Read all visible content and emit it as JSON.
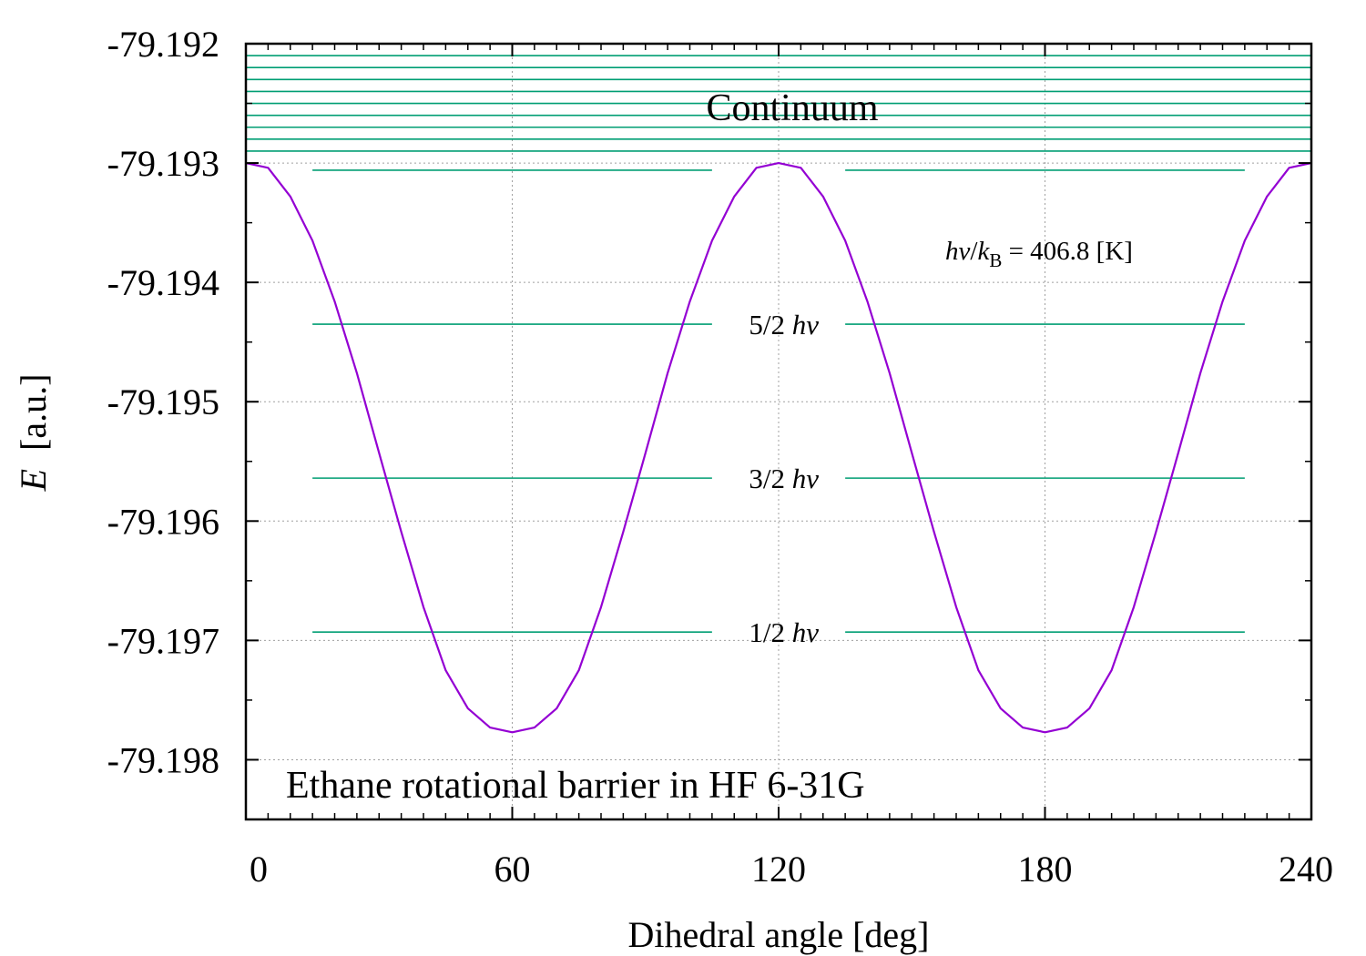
{
  "chart_data": {
    "type": "line",
    "title": "Ethane rotational barrier in HF 6-31G",
    "xlabel": "Dihedral angle [deg]",
    "ylabel_symbol": "E",
    "ylabel_unit": "[a.u.]",
    "xlim": [
      0,
      240
    ],
    "ylim": [
      -79.1985,
      -79.192
    ],
    "xticks": [
      0,
      60,
      120,
      180,
      240
    ],
    "xtick_labels": [
      "0",
      "60",
      "120",
      "180",
      "240"
    ],
    "yticks": [
      -79.192,
      -79.193,
      -79.194,
      -79.195,
      -79.196,
      -79.197,
      -79.198
    ],
    "ytick_labels": [
      "-79.192",
      "-79.193",
      "-79.194",
      "-79.195",
      "-79.196",
      "-79.197",
      "-79.198"
    ],
    "grid": true,
    "colors": {
      "curve": "#9400d3",
      "levels": "#009e73",
      "grid": "#a0a0a0",
      "axis": "#000000"
    },
    "series": [
      {
        "values_x": [
          0,
          5,
          10,
          15,
          20,
          25,
          30,
          35,
          40,
          45,
          50,
          55,
          60,
          65,
          70,
          75,
          80,
          85,
          90,
          95,
          100,
          105,
          110,
          115,
          120,
          125,
          130,
          135,
          140,
          145,
          150,
          155,
          160,
          165,
          170,
          175,
          180,
          185,
          190,
          195,
          200,
          205,
          210,
          215,
          220,
          225,
          230,
          235,
          240
        ],
        "values_y": [
          -79.193,
          -79.19304,
          -79.19328,
          -79.19365,
          -79.19416,
          -79.19476,
          -79.19543,
          -79.19609,
          -79.19672,
          -79.19725,
          -79.19757,
          -79.19773,
          -79.19777,
          -79.19773,
          -79.19757,
          -79.19725,
          -79.19672,
          -79.19609,
          -79.19543,
          -79.19476,
          -79.19416,
          -79.19365,
          -79.19328,
          -79.19304,
          -79.193,
          -79.19304,
          -79.19328,
          -79.19365,
          -79.19416,
          -79.19476,
          -79.19543,
          -79.19609,
          -79.19672,
          -79.19725,
          -79.19757,
          -79.19773,
          -79.19777,
          -79.19773,
          -79.19757,
          -79.19725,
          -79.19672,
          -79.19609,
          -79.19543,
          -79.19476,
          -79.19416,
          -79.19365,
          -79.19328,
          -79.19304,
          -79.193
        ]
      }
    ],
    "levels": [
      {
        "label_num": "1/2",
        "label_sym": "hν",
        "y": -79.19693
      },
      {
        "label_num": "3/2",
        "label_sym": "hν",
        "y": -79.19564
      },
      {
        "label_num": "5/2",
        "label_sym": "hν",
        "y": -79.19435
      },
      {
        "label_num": "",
        "label_sym": "",
        "y": -79.19306
      }
    ],
    "level_x_ranges": [
      [
        15,
        105
      ],
      [
        135,
        225
      ]
    ],
    "continuum": {
      "label": "Continuum",
      "lines_y": [
        -79.1929,
        -79.1928,
        -79.1927,
        -79.1926,
        -79.1925,
        -79.1924,
        -79.1923,
        -79.1922,
        -79.1921
      ]
    },
    "energy_note": {
      "h": "h",
      "nu": "ν",
      "slash": "/",
      "k": "k",
      "sub": "B",
      "rest": " = 406.8 [K]"
    }
  }
}
